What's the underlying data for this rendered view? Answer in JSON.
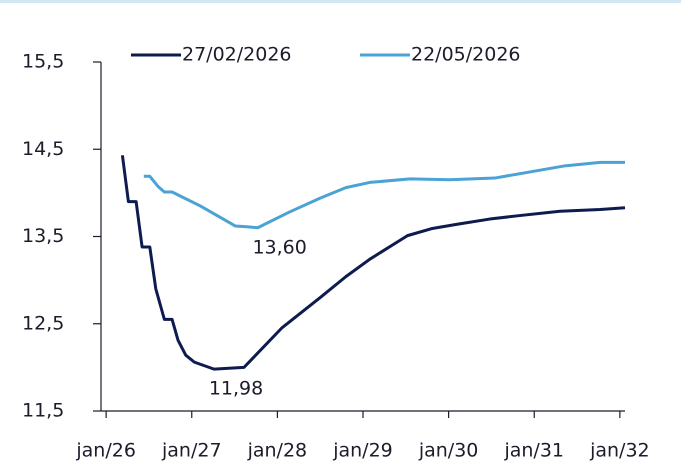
{
  "chart_data": {
    "type": "line",
    "xlim": [
      2025.94,
      2032.06
    ],
    "xticks": [
      {
        "value": 2026,
        "label": "jan/26"
      },
      {
        "value": 2027,
        "label": "jan/27"
      },
      {
        "value": 2028,
        "label": "jan/28"
      },
      {
        "value": 2029,
        "label": "jan/29"
      },
      {
        "value": 2030,
        "label": "jan/30"
      },
      {
        "value": 2031,
        "label": "jan/31"
      },
      {
        "value": 2032,
        "label": "jan/32"
      }
    ],
    "ylim": [
      11.5,
      15.5
    ],
    "yticks": [
      {
        "value": 11.5,
        "label": "11,5"
      },
      {
        "value": 12.5,
        "label": "12,5"
      },
      {
        "value": 13.5,
        "label": "13,5"
      },
      {
        "value": 14.5,
        "label": "14,5"
      },
      {
        "value": 15.5,
        "label": "15,5"
      }
    ],
    "series": [
      {
        "name": "27/02/2026",
        "color": "#0d1b4f",
        "x": [
          2026.19,
          2026.26,
          2026.35,
          2026.42,
          2026.51,
          2026.58,
          2026.68,
          2026.77,
          2026.84,
          2026.93,
          2027.03,
          2027.26,
          2027.61,
          2028.05,
          2028.5,
          2028.8,
          2029.08,
          2029.34,
          2029.52,
          2029.8,
          2030.1,
          2030.48,
          2030.83,
          2031.3,
          2031.77,
          2032.06
        ],
        "values": [
          14.43,
          13.9,
          13.9,
          13.38,
          13.38,
          12.9,
          12.55,
          12.55,
          12.31,
          12.14,
          12.06,
          11.98,
          12.0,
          12.45,
          12.8,
          13.04,
          13.24,
          13.4,
          13.51,
          13.59,
          13.64,
          13.7,
          13.74,
          13.79,
          13.81,
          13.83
        ],
        "value_labels": [
          null,
          null,
          null,
          null,
          null,
          null,
          null,
          null,
          null,
          null,
          null,
          "11,98",
          null,
          null,
          null,
          null,
          null,
          null,
          null,
          null,
          null,
          null,
          null,
          null,
          null,
          null
        ]
      },
      {
        "name": "22/05/2026",
        "color": "#4aa3d4",
        "x": [
          2026.44,
          2026.51,
          2026.61,
          2026.68,
          2026.77,
          2027.1,
          2027.51,
          2027.66,
          2027.77,
          2028.14,
          2028.5,
          2028.8,
          2029.08,
          2029.55,
          2030.01,
          2030.54,
          2030.95,
          2031.36,
          2031.77,
          2032.06
        ],
        "values": [
          14.19,
          14.19,
          14.07,
          14.01,
          14.01,
          13.85,
          13.62,
          13.61,
          13.6,
          13.78,
          13.94,
          14.06,
          14.12,
          14.16,
          14.15,
          14.17,
          14.24,
          14.31,
          14.35,
          14.35
        ],
        "value_labels": [
          null,
          null,
          null,
          null,
          null,
          null,
          null,
          null,
          "13,60",
          null,
          null,
          null,
          null,
          null,
          null,
          null,
          null,
          null,
          null,
          null
        ]
      }
    ]
  }
}
